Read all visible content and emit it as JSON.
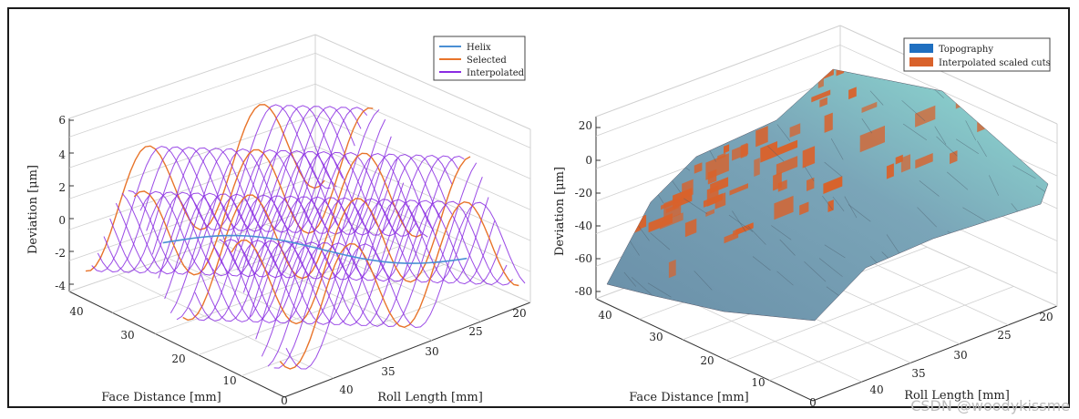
{
  "chart_data": [
    {
      "type": "3d-line",
      "zlabel": "Deviation [μm]",
      "xlabel": "Face Distance [mm]",
      "ylabel": "Roll Length [mm]",
      "z_ticks": [
        "6",
        "4",
        "2",
        "0",
        "-2",
        "-4"
      ],
      "x_ticks": [
        "40",
        "30",
        "20",
        "10",
        "0"
      ],
      "y_ticks": [
        "40",
        "35",
        "30",
        "25",
        "20"
      ],
      "zlim": [
        -4,
        6
      ],
      "xlim": [
        0,
        42
      ],
      "ylim": [
        18,
        43
      ],
      "legend": [
        {
          "label": "Helix",
          "color": "#4a8fd4"
        },
        {
          "label": "Selected",
          "color": "#e8742a"
        },
        {
          "label": "Interpolated",
          "color": "#8a2be2"
        }
      ],
      "legend_position": "top-right",
      "grid": true,
      "series": {
        "profile_count": 34,
        "selected_every": 8,
        "roll_length_range": [
          18,
          42
        ],
        "face_distance_range": [
          0,
          42
        ],
        "peak_value": 3.0,
        "trough_value": -3.0
      }
    },
    {
      "type": "surface",
      "zlabel": "Deviation [μm]",
      "xlabel": "Face Distance [mm]",
      "ylabel": "Roll Length [mm]",
      "z_ticks": [
        "20",
        "0",
        "-20",
        "-40",
        "-60",
        "-80"
      ],
      "x_ticks": [
        "40",
        "30",
        "20",
        "10",
        "0"
      ],
      "y_ticks": [
        "40",
        "35",
        "30",
        "25",
        "20"
      ],
      "zlim": [
        -80,
        20
      ],
      "xlim": [
        0,
        42
      ],
      "ylim": [
        18,
        43
      ],
      "legend": [
        {
          "label": "Topography",
          "color": "#1f6fc0"
        },
        {
          "label": "Interpolated scaled cuts",
          "color": "#d9622b"
        }
      ],
      "legend_position": "top-right",
      "grid": true,
      "surface": {
        "max_deviation": 15,
        "min_deviation": -75,
        "colors": [
          "#6a8fa8",
          "#d9622b",
          "#7fd3c8"
        ]
      }
    }
  ],
  "watermark": "CSDN @woodykissme"
}
